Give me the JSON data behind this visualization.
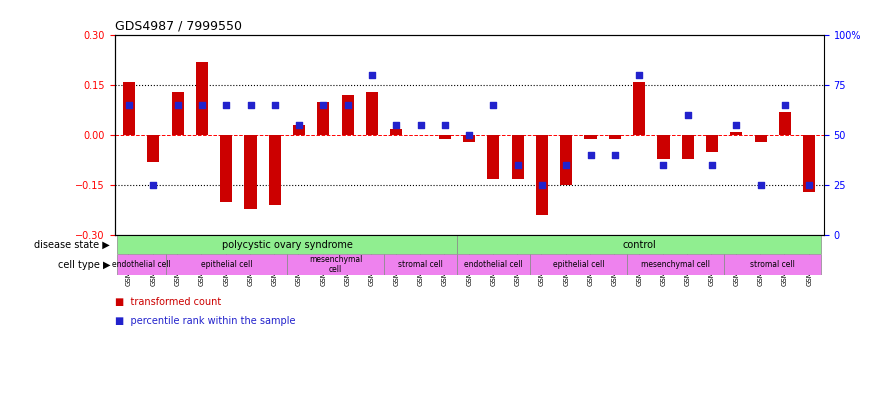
{
  "title": "GDS4987 / 7999550",
  "samples": [
    "GSM1174425",
    "GSM1174429",
    "GSM1174436",
    "GSM1174427",
    "GSM1174430",
    "GSM1174432",
    "GSM1174435",
    "GSM1174424",
    "GSM1174428",
    "GSM1174433",
    "GSM1174423",
    "GSM1174426",
    "GSM1174431",
    "GSM1174434",
    "GSM1174409",
    "GSM1174414",
    "GSM1174418",
    "GSM1174421",
    "GSM1174412",
    "GSM1174416",
    "GSM1174419",
    "GSM1174408",
    "GSM1174413",
    "GSM1174417",
    "GSM1174420",
    "GSM1174410",
    "GSM1174411",
    "GSM1174415",
    "GSM1174422"
  ],
  "red_values": [
    0.16,
    -0.08,
    0.13,
    0.22,
    -0.2,
    -0.22,
    -0.21,
    0.03,
    0.1,
    0.12,
    0.13,
    0.02,
    0.0,
    -0.01,
    -0.02,
    -0.13,
    -0.13,
    -0.24,
    -0.15,
    -0.01,
    -0.01,
    0.16,
    -0.07,
    -0.07,
    -0.05,
    0.01,
    -0.02,
    0.07,
    -0.17
  ],
  "blue_values": [
    65,
    25,
    65,
    65,
    65,
    65,
    65,
    55,
    65,
    65,
    80,
    55,
    55,
    55,
    50,
    65,
    35,
    25,
    35,
    40,
    40,
    80,
    35,
    60,
    35,
    55,
    25,
    65,
    25
  ],
  "pcos_range": [
    0,
    14
  ],
  "ctrl_range": [
    14,
    29
  ],
  "cell_type_pcos": [
    {
      "label": "endothelial cell",
      "start": 0,
      "end": 2
    },
    {
      "label": "epithelial cell",
      "start": 2,
      "end": 7
    },
    {
      "label": "mesenchymal\ncell",
      "start": 7,
      "end": 11
    },
    {
      "label": "stromal cell",
      "start": 11,
      "end": 14
    }
  ],
  "cell_type_control": [
    {
      "label": "endothelial cell",
      "start": 14,
      "end": 17
    },
    {
      "label": "epithelial cell",
      "start": 17,
      "end": 21
    },
    {
      "label": "mesenchymal cell",
      "start": 21,
      "end": 25
    },
    {
      "label": "stromal cell",
      "start": 25,
      "end": 29
    }
  ],
  "ylim_left": [
    -0.3,
    0.3
  ],
  "ylim_right": [
    0,
    100
  ],
  "yticks_left": [
    -0.3,
    -0.15,
    0,
    0.15,
    0.3
  ],
  "yticks_right": [
    0,
    25,
    50,
    75,
    100
  ],
  "hlines_dotted": [
    -0.15,
    0.15
  ],
  "bar_color": "#cc0000",
  "dot_color": "#2222cc",
  "pcos_color": "#90ee90",
  "ctrl_color": "#90ee90",
  "cell_color": "#ee82ee",
  "bg_color": "#ffffff"
}
